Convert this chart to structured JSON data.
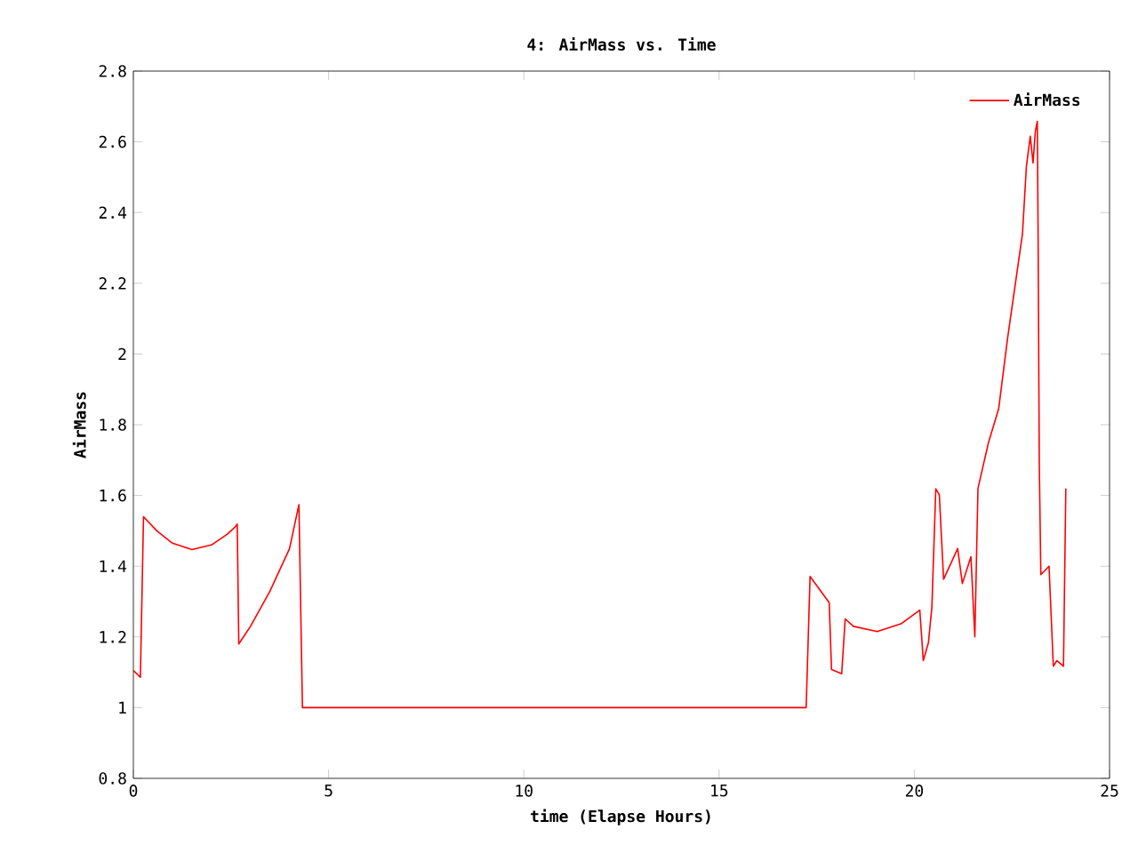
{
  "chart_data": {
    "type": "line",
    "title": "4: AirMass vs. Time",
    "xlabel": "time (Elapse Hours)",
    "ylabel": "AirMass",
    "xlim": [
      0,
      25
    ],
    "xticks": [
      0,
      5,
      10,
      15,
      20,
      25
    ],
    "ylim": [
      0.8,
      2.8
    ],
    "yticks": [
      0.8,
      1,
      1.2,
      1.4,
      1.6,
      1.8,
      2,
      2.2,
      2.4,
      2.6,
      2.8
    ],
    "legend": "top right",
    "grid": false,
    "marker": "none",
    "line_style": "solid",
    "series": [
      {
        "name": "AirMass",
        "color": "#ff0000",
        "x": [
          0,
          0.18,
          0.26,
          0.6,
          1.0,
          1.5,
          2.0,
          2.4,
          2.6,
          2.66,
          2.7,
          3.0,
          3.5,
          4.0,
          4.24,
          4.33,
          10,
          17.23,
          17.33,
          17.82,
          17.88,
          18.14,
          18.23,
          18.44,
          19.05,
          19.66,
          20.14,
          20.23,
          20.36,
          20.45,
          20.55,
          20.64,
          20.75,
          21.11,
          21.23,
          21.45,
          21.55,
          21.63,
          21.9,
          22.16,
          22.39,
          22.77,
          22.87,
          22.97,
          23.04,
          23.1,
          23.15,
          23.17,
          23.2,
          23.24,
          23.45,
          23.56,
          23.65,
          23.82,
          23.88
        ],
        "values": [
          1.105,
          1.086,
          1.54,
          1.5,
          1.465,
          1.447,
          1.46,
          1.49,
          1.51,
          1.519,
          1.18,
          1.23,
          1.33,
          1.45,
          1.574,
          1.0,
          1.0,
          1.0,
          1.371,
          1.297,
          1.108,
          1.096,
          1.251,
          1.23,
          1.215,
          1.237,
          1.276,
          1.133,
          1.183,
          1.284,
          1.619,
          1.602,
          1.363,
          1.45,
          1.351,
          1.427,
          1.2,
          1.62,
          1.75,
          1.845,
          2.046,
          2.34,
          2.53,
          2.616,
          2.54,
          2.63,
          2.658,
          2.34,
          1.695,
          1.376,
          1.4,
          1.117,
          1.133,
          1.117,
          1.62
        ]
      }
    ]
  }
}
